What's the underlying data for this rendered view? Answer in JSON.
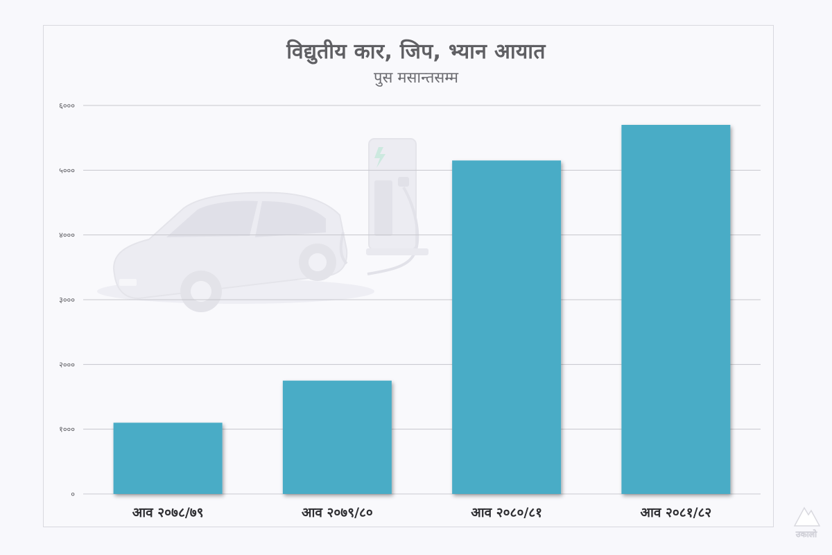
{
  "chart_data": {
    "type": "bar",
    "title": "विद्युतीय कार, जिप, भ्यान आयात",
    "subtitle": "पुस मसान्तसम्म",
    "categories": [
      "आव २०७८/७९",
      "आव २०७९/८०",
      "आव २०८०/८१",
      "आव २०८१/८२"
    ],
    "values": [
      1100,
      1750,
      5150,
      5700
    ],
    "ylim": [
      0,
      6000
    ],
    "yticks": [
      0,
      1000,
      2000,
      3000,
      4000,
      5000,
      6000
    ],
    "ytick_labels": [
      "०",
      "१०००",
      "२०००",
      "३०००",
      "४०००",
      "५०००",
      "६०००"
    ],
    "xlabel": "",
    "ylabel": "",
    "grid": true,
    "bar_color": "#4aacc6"
  },
  "publisher_logo": {
    "text": "उकालो",
    "icon": "mountain-logo-icon"
  }
}
